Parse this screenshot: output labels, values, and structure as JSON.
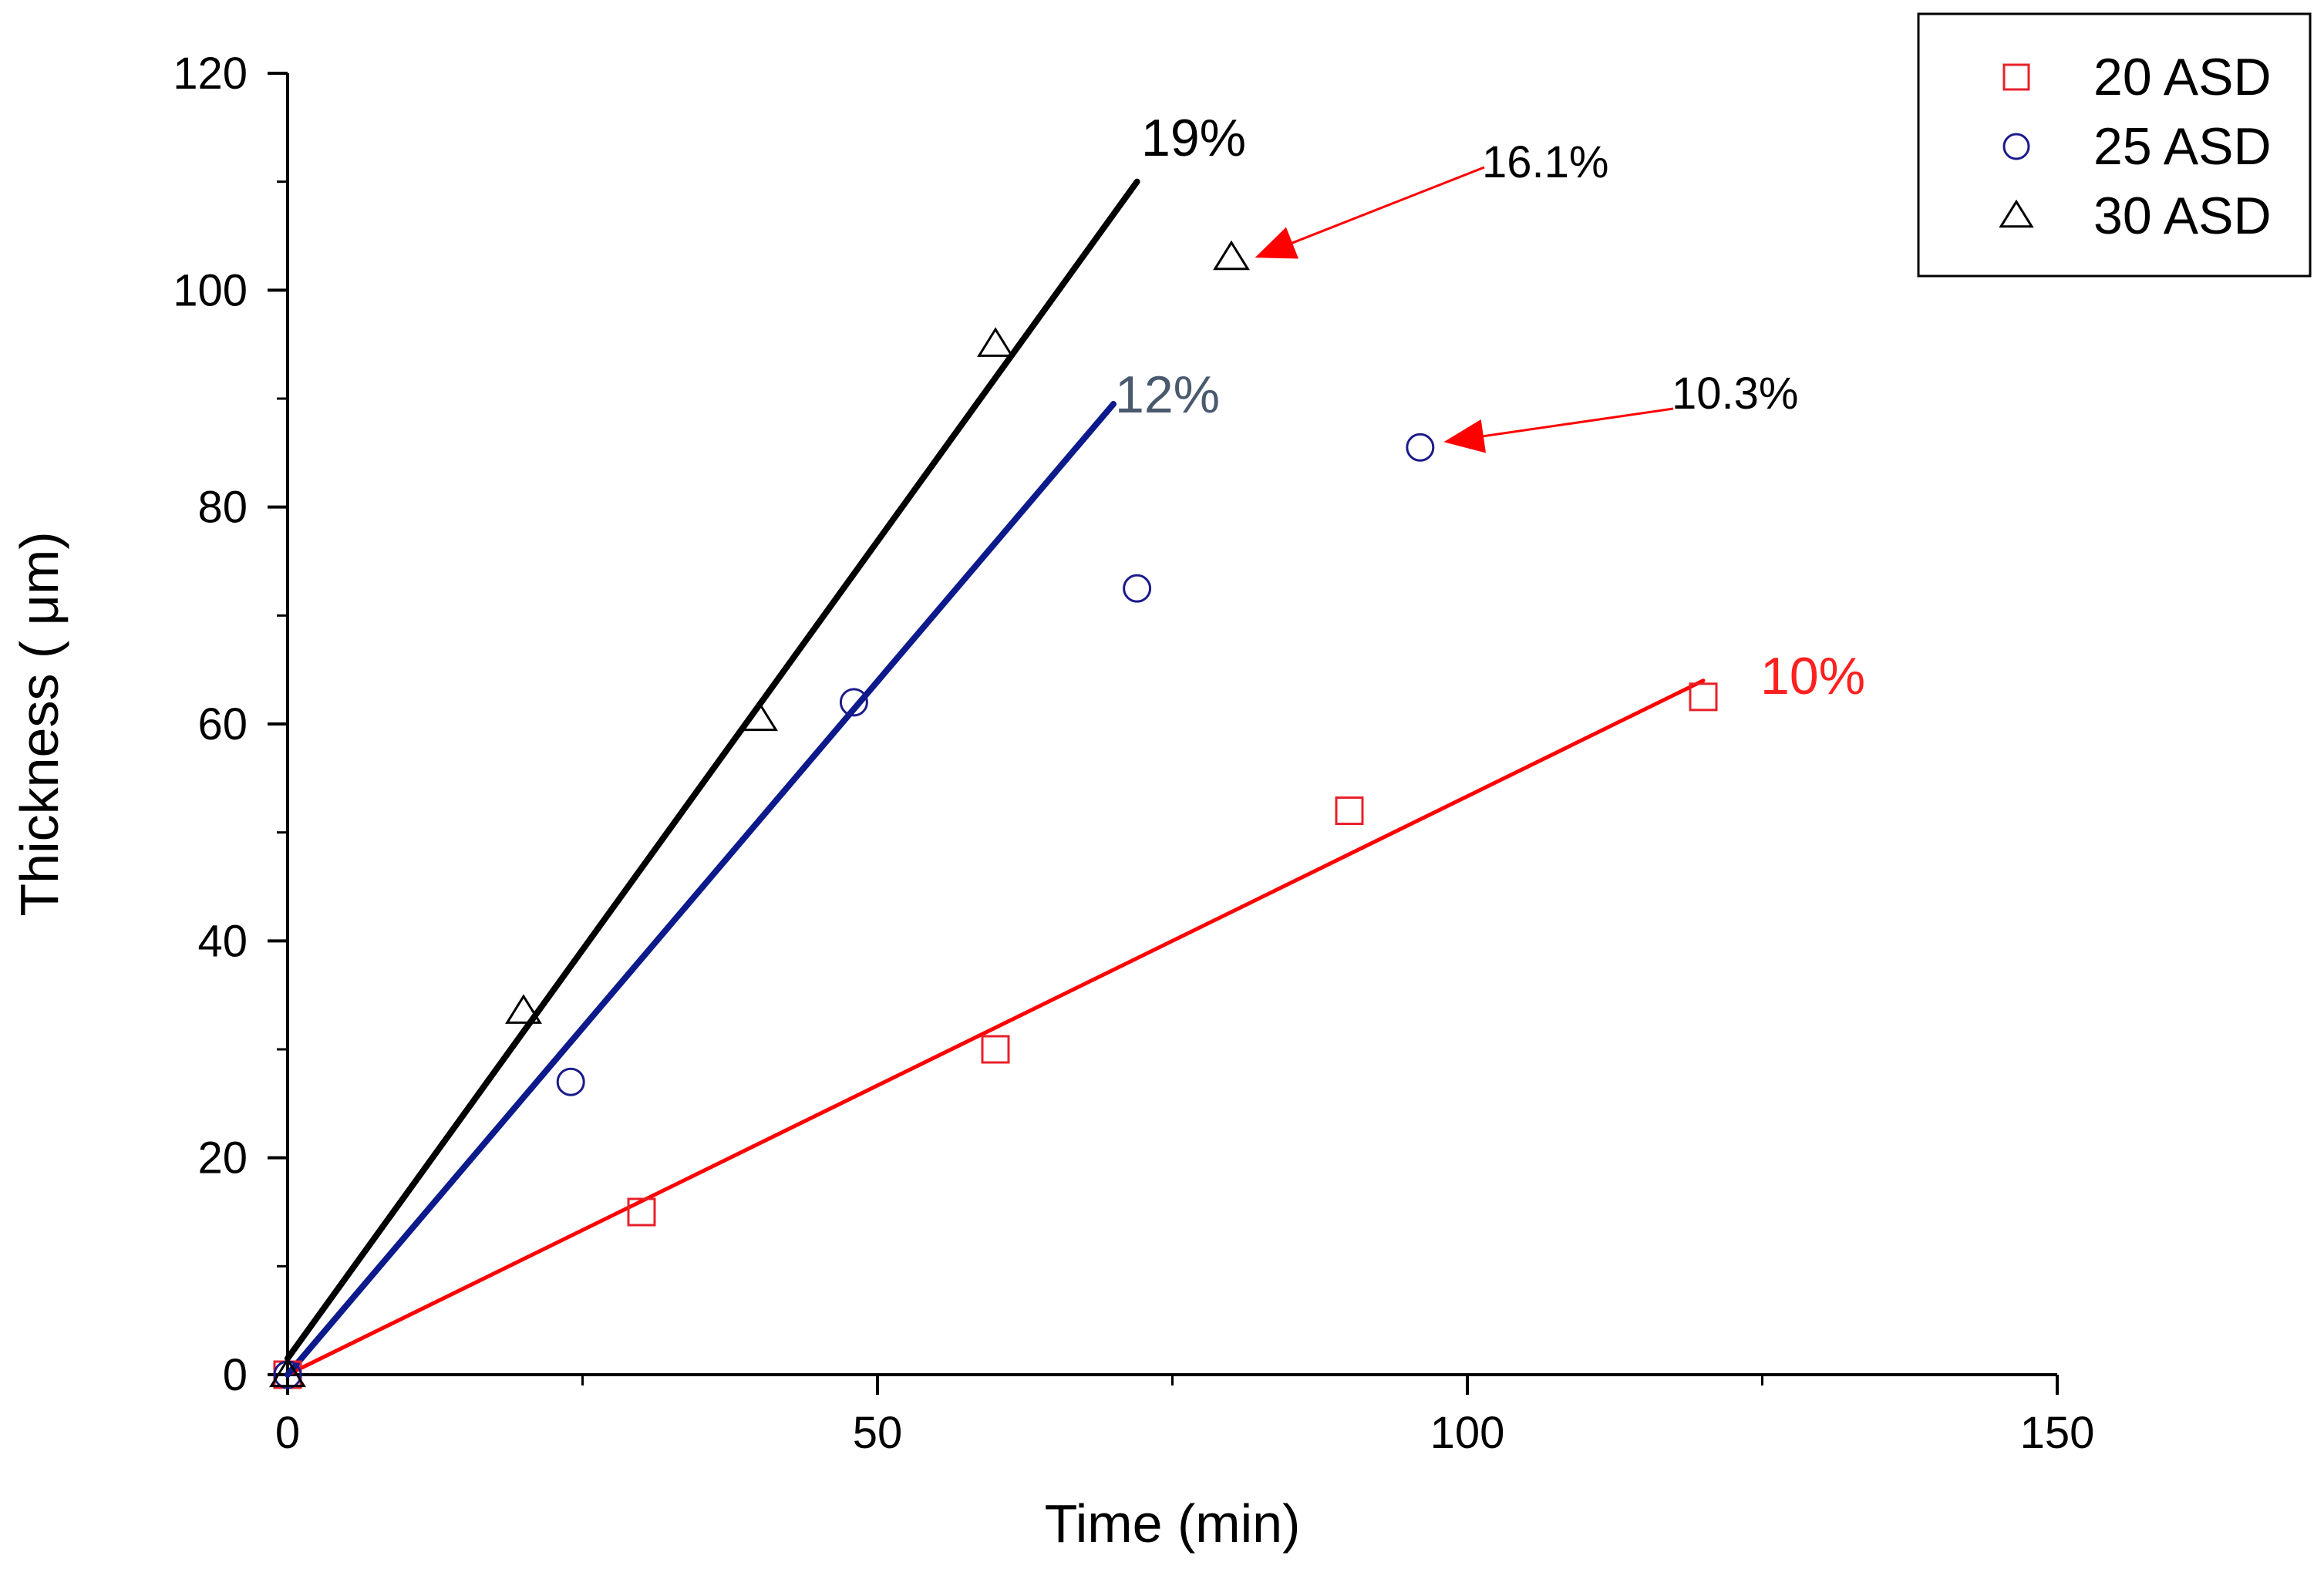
{
  "chart_data": {
    "type": "scatter",
    "title": "",
    "xlabel": "Time (min)",
    "ylabel": "Thickness ( μm)",
    "xlim": [
      0,
      150
    ],
    "ylim": [
      0,
      120
    ],
    "xticks": [
      "0",
      "50",
      "100",
      "150"
    ],
    "yticks": [
      "0",
      "20",
      "40",
      "60",
      "80",
      "100",
      "120"
    ],
    "x_tick_values": [
      0,
      50,
      100,
      150
    ],
    "y_tick_values": [
      0,
      20,
      40,
      60,
      80,
      100,
      120
    ],
    "grid": false,
    "legend_position": "top-right",
    "series": [
      {
        "name": "20 ASD",
        "marker": "square",
        "color": "#e8202a",
        "x": [
          0,
          30,
          60,
          90,
          120
        ],
        "y": [
          0,
          15,
          30,
          52,
          62.5
        ],
        "fit": {
          "x": [
            0,
            120
          ],
          "y": [
            0,
            64
          ],
          "label": "10%",
          "label_color": "#ff2020",
          "line_color": "#ff0000"
        }
      },
      {
        "name": "25 ASD",
        "marker": "circle",
        "color": "#1a1a8c",
        "x": [
          0,
          24,
          48,
          72,
          96
        ],
        "y": [
          0,
          27,
          62,
          72.5,
          85.5
        ],
        "fit": {
          "x": [
            0,
            70
          ],
          "y": [
            0,
            89.5
          ],
          "label": "12%",
          "label_color": "#4a5a6e",
          "line_color": "#0d1a8c"
        }
      },
      {
        "name": "30 ASD",
        "marker": "triangle",
        "color": "#000000",
        "x": [
          0,
          20,
          40,
          60,
          80
        ],
        "y": [
          0,
          33.5,
          60.5,
          95,
          103
        ],
        "fit": {
          "x": [
            0,
            72
          ],
          "y": [
            1.5,
            110
          ],
          "label": "19%",
          "label_color": "#000000",
          "line_color": "#000000"
        }
      }
    ],
    "annotations": [
      {
        "text": "16.1%",
        "target": {
          "x": 82,
          "y": 103
        },
        "color": "#ff0000"
      },
      {
        "text": "10.3%",
        "target": {
          "x": 98,
          "y": 86
        },
        "color": "#ff0000"
      }
    ]
  }
}
